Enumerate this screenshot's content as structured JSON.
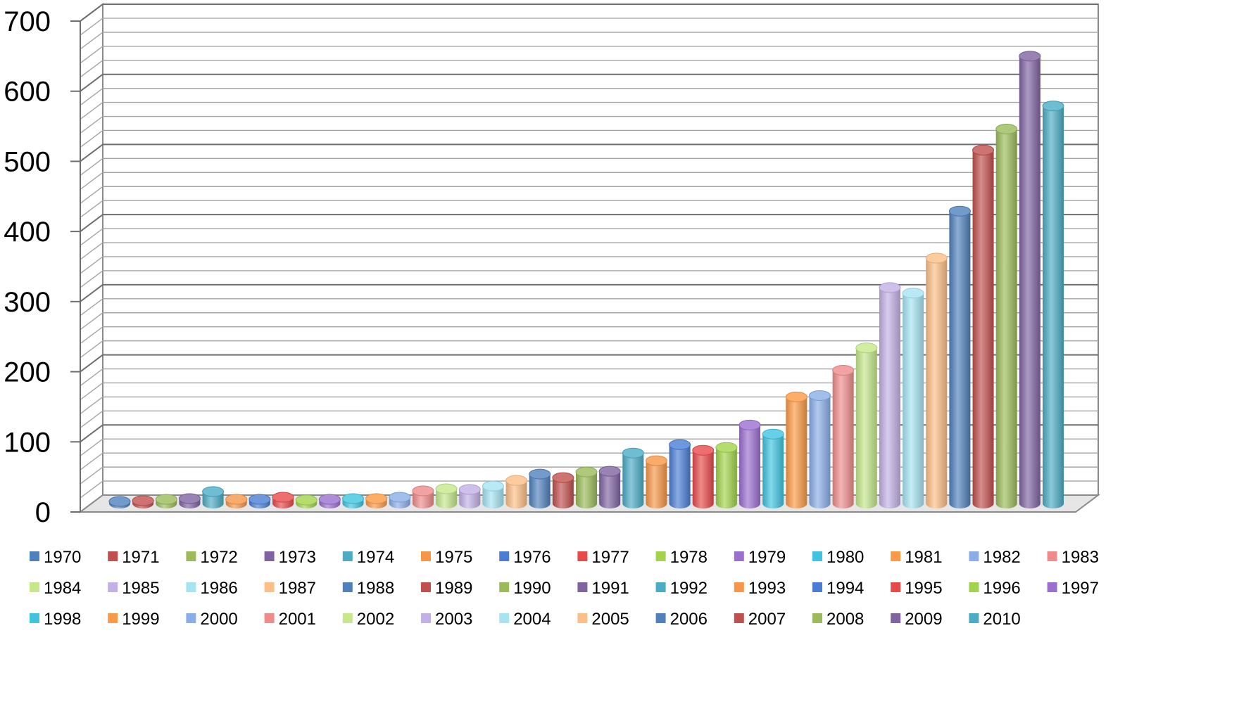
{
  "chart_data": {
    "type": "bar",
    "style": "3d-cylinder",
    "categories": [
      "1970",
      "1971",
      "1972",
      "1973",
      "1974",
      "1975",
      "1976",
      "1977",
      "1978",
      "1979",
      "1980",
      "1981",
      "1982",
      "1983",
      "1984",
      "1985",
      "1986",
      "1987",
      "1988",
      "1989",
      "1990",
      "1991",
      "1992",
      "1993",
      "1994",
      "1995",
      "1996",
      "1997",
      "1998",
      "1999",
      "2000",
      "2001",
      "2002",
      "2003",
      "2004",
      "2005",
      "2006",
      "2007",
      "2008",
      "2009",
      "2010"
    ],
    "values": [
      3,
      4,
      6,
      7,
      17,
      6,
      6,
      9,
      5,
      6,
      7,
      7,
      9,
      18,
      21,
      20,
      25,
      33,
      42,
      37,
      45,
      46,
      72,
      61,
      84,
      76,
      80,
      112,
      99,
      152,
      154,
      190,
      222,
      308,
      300,
      350,
      417,
      504,
      534,
      638,
      567
    ],
    "title": "",
    "xlabel": "",
    "ylabel": "",
    "ylim": [
      0,
      700
    ],
    "yticks": [
      "0",
      "100",
      "200",
      "300",
      "400",
      "500",
      "600",
      "700"
    ],
    "grid": true,
    "legend_position": "bottom",
    "colors": [
      "#4f81bd",
      "#c0504d",
      "#9bbb59",
      "#8064a2",
      "#4bacc6",
      "#f79646",
      "#4a7ed6",
      "#e84a4a",
      "#a2d44a",
      "#9b6fcf",
      "#3fc4e0",
      "#fb9a44",
      "#8aaee8",
      "#f08b8b",
      "#c4e88a",
      "#c3b0e6",
      "#a6e4f2",
      "#fdbf86"
    ]
  }
}
